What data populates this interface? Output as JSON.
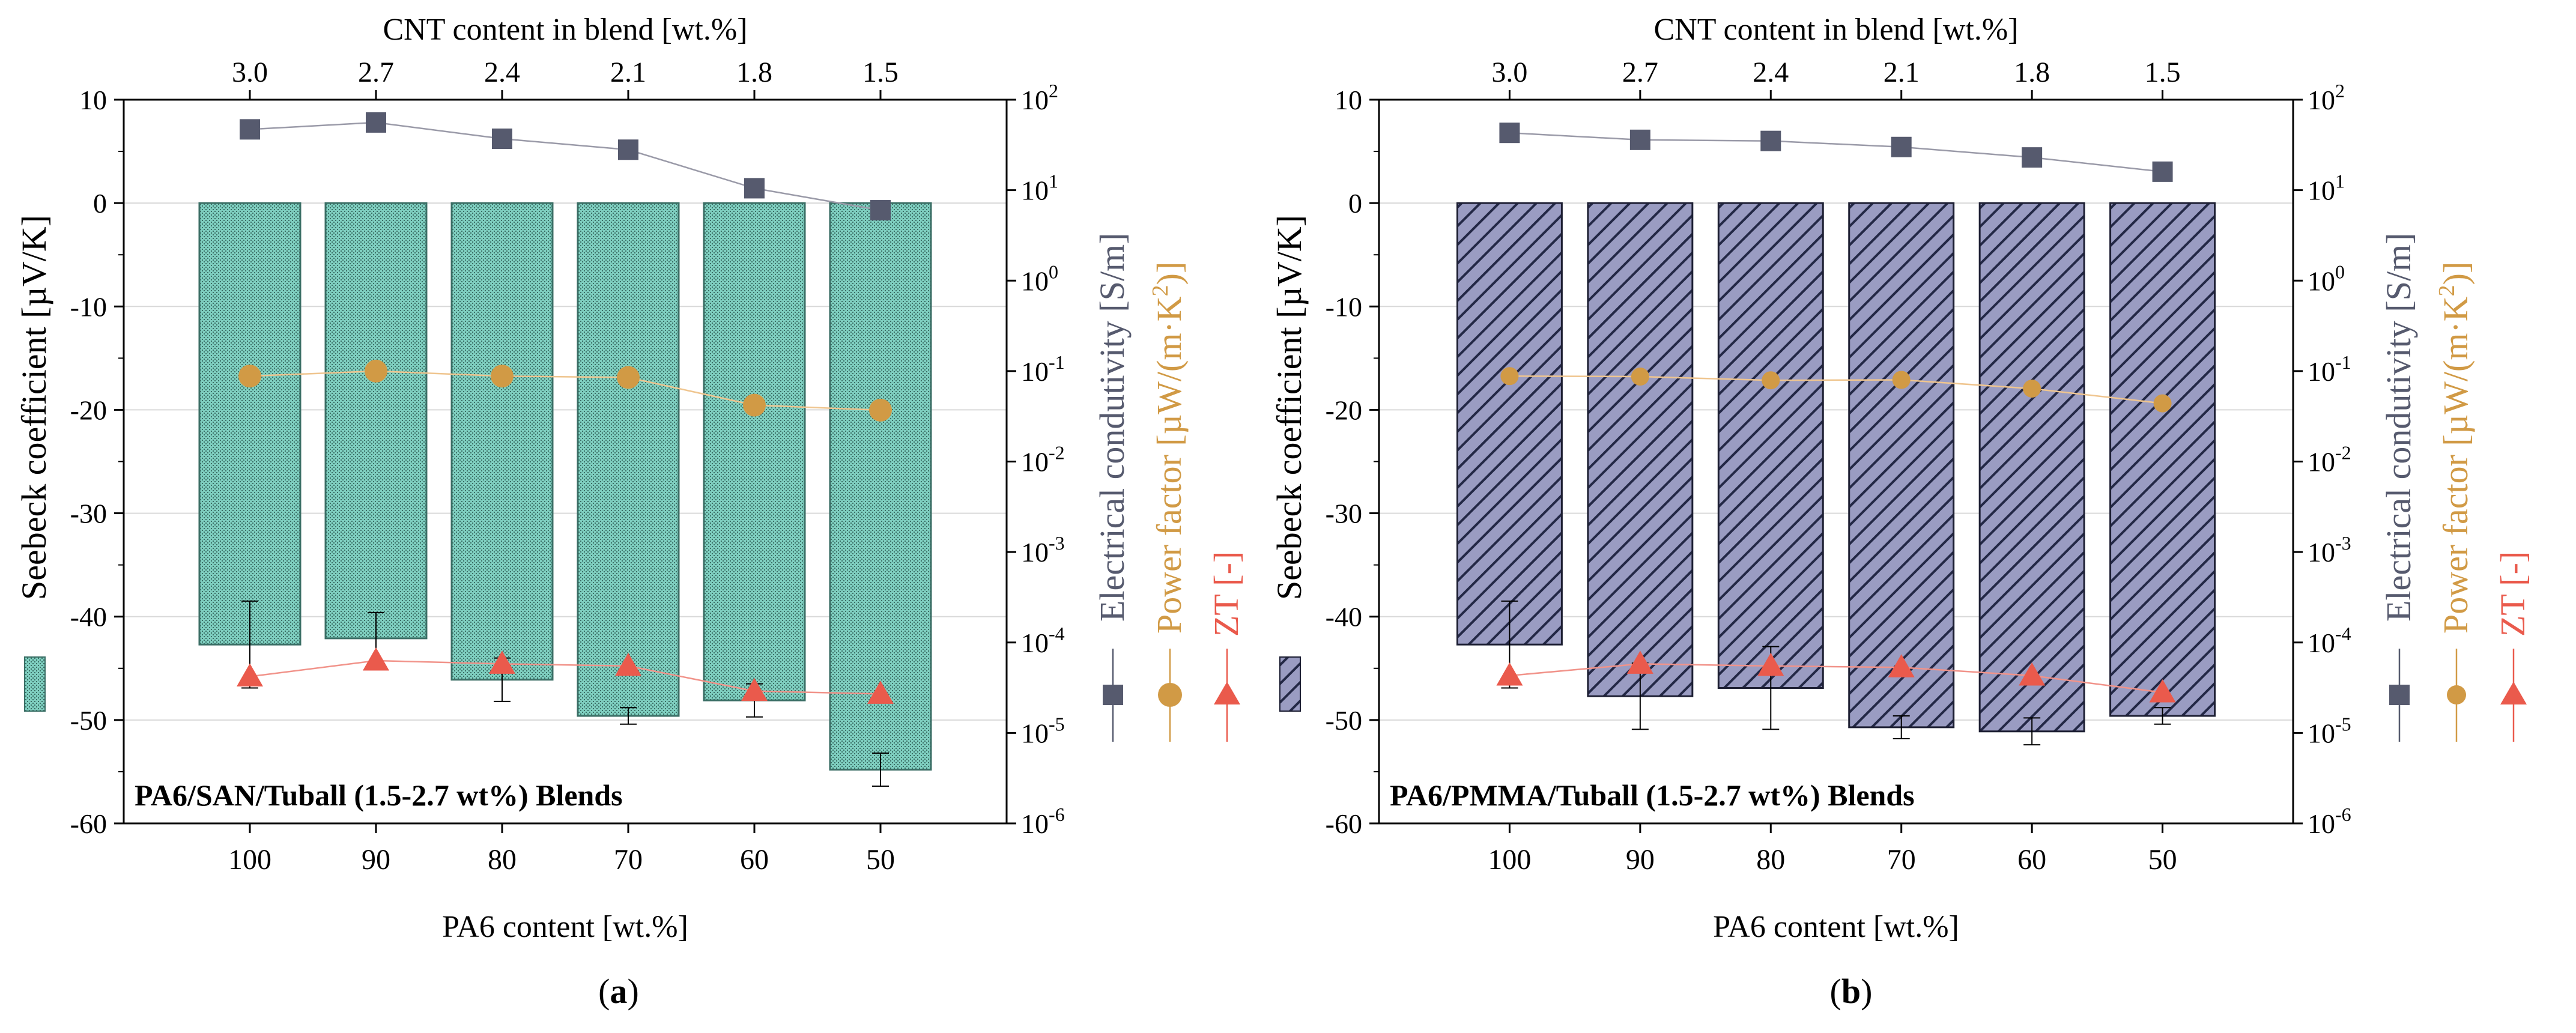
{
  "figure": {
    "panel_label_a": "a",
    "panel_label_b": "b",
    "paren_open": "(",
    "paren_close": ")"
  },
  "colors": {
    "bar_a": "#7fcfc0",
    "bar_b": "#9a9cc2",
    "conductivity": "#565a6e",
    "power_factor": "#d19a45",
    "zt": "#ea5a4c",
    "gridline": "#d9d9d9",
    "sigma_line": "#9a9aa8",
    "pf_line": "#efc58f",
    "zt_line": "#f1938a"
  },
  "chart_data": [
    {
      "id": "a",
      "type": "bar",
      "title": "PA6/SAN/Tuball (1.5-2.7 wt%) Blends",
      "xlabel": "PA6 content [wt.%]",
      "x2label": "CNT content in blend [wt.%]",
      "ylabel": "Seebeck coefficient [µV/K]",
      "y2label_sigma": "Electrical condutivity [S/m]",
      "y2label_pf_pre": "Power factor [µW/(m·K",
      "y2label_pf_sup": "2",
      "y2label_pf_post": ")]",
      "y2label_zt": "ZT [-]",
      "categories": [
        "100",
        "90",
        "80",
        "70",
        "60",
        "50"
      ],
      "top_categories": [
        "3.0",
        "2.7",
        "2.4",
        "2.1",
        "1.8",
        "1.5"
      ],
      "ylim": [
        -60,
        10
      ],
      "yticks": [
        "10",
        "0",
        "-10",
        "-20",
        "-30",
        "-40",
        "-50",
        "-60"
      ],
      "y2_log_range": [
        -6,
        2
      ],
      "y2_tick_exponents": [
        "2",
        "1",
        "0",
        "-1",
        "-2",
        "-3",
        "-4",
        "-5",
        "-6"
      ],
      "y2_tick_base": "10",
      "seebeck": [
        -42.7,
        -42.1,
        -46.1,
        -49.6,
        -48.1,
        -54.8
      ],
      "seebeck_err": [
        4.2,
        2.5,
        2.1,
        0.8,
        1.6,
        1.6
      ],
      "conductivity": [
        47,
        56,
        37,
        28,
        10.5,
        6.0
      ],
      "power_factor": [
        0.088,
        0.1,
        0.088,
        0.085,
        0.042,
        0.037
      ],
      "zt": [
        4.2e-05,
        6.3e-05,
        5.8e-05,
        5.5e-05,
        2.9e-05,
        2.7e-05
      ]
    },
    {
      "id": "b",
      "type": "bar",
      "title": "PA6/PMMA/Tuball (1.5-2.7 wt%) Blends",
      "xlabel": "PA6 content [wt.%]",
      "x2label": "CNT content in blend [wt.%]",
      "ylabel": "Seebeck coefficient [µV/K]",
      "y2label_sigma": "Electrical condutivity [S/m]",
      "y2label_pf_pre": "Power factor [µW/(m·K",
      "y2label_pf_sup": "2",
      "y2label_pf_post": ")]",
      "y2label_zt": "ZT [-]",
      "categories": [
        "100",
        "90",
        "80",
        "70",
        "60",
        "50"
      ],
      "top_categories": [
        "3.0",
        "2.7",
        "2.4",
        "2.1",
        "1.8",
        "1.5"
      ],
      "ylim": [
        -60,
        10
      ],
      "yticks": [
        "10",
        "0",
        "-10",
        "-20",
        "-30",
        "-40",
        "-50",
        "-60"
      ],
      "y2_log_range": [
        -6,
        2
      ],
      "y2_tick_exponents": [
        "2",
        "1",
        "0",
        "-1",
        "-2",
        "-3",
        "-4",
        "-5",
        "-6"
      ],
      "y2_tick_base": "10",
      "seebeck": [
        -42.7,
        -47.7,
        -46.9,
        -50.7,
        -51.1,
        -49.6
      ],
      "seebeck_err": [
        4.2,
        3.2,
        4.0,
        1.1,
        1.3,
        0.8
      ],
      "conductivity": [
        43,
        36,
        35,
        30,
        23,
        16
      ],
      "power_factor": [
        0.088,
        0.087,
        0.079,
        0.08,
        0.064,
        0.044
      ],
      "zt": [
        4.3e-05,
        5.8e-05,
        5.5e-05,
        5.3e-05,
        4.3e-05,
        2.8e-05
      ]
    }
  ]
}
